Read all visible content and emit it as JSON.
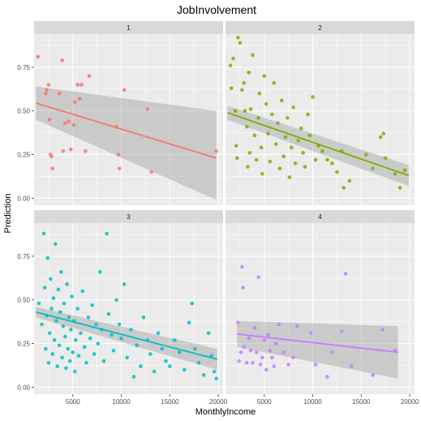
{
  "chart_data": {
    "type": "scatter",
    "title": "JobInvolvement",
    "xlabel": "MonthlyIncome",
    "ylabel": "Prediction",
    "xlim": [
      1000,
      20500
    ],
    "ylim": [
      -0.04,
      0.94
    ],
    "x_ticks": [
      5000,
      10000,
      15000,
      20000
    ],
    "x_tick_labels": [
      "5000",
      "10000",
      "15000",
      "20000"
    ],
    "y_ticks": [
      0,
      0.25,
      0.5,
      0.75
    ],
    "y_tick_labels": [
      "0.00",
      "0.25",
      "0.50",
      "0.75"
    ],
    "grid": true,
    "facet_by": "JobInvolvement",
    "panels": [
      {
        "label": "1",
        "color": "#F8766D",
        "trend": {
          "x": [
            1200,
            19800
          ],
          "y": [
            0.545,
            0.23
          ],
          "upper": [
            0.64,
            0.5
          ],
          "lower": [
            0.45,
            -0.01
          ]
        },
        "points": [
          [
            1400,
            0.81
          ],
          [
            2200,
            0.6
          ],
          [
            2300,
            0.62
          ],
          [
            2500,
            0.65
          ],
          [
            2600,
            0.45
          ],
          [
            2700,
            0.25
          ],
          [
            2800,
            0.24
          ],
          [
            2900,
            0.17
          ],
          [
            3600,
            0.6
          ],
          [
            3900,
            0.79
          ],
          [
            4000,
            0.27
          ],
          [
            4200,
            0.43
          ],
          [
            4600,
            0.44
          ],
          [
            4800,
            0.28
          ],
          [
            5100,
            0.42
          ],
          [
            5200,
            0.55
          ],
          [
            5500,
            0.65
          ],
          [
            5700,
            0.57
          ],
          [
            5900,
            0.65
          ],
          [
            6300,
            0.27
          ],
          [
            6700,
            0.7
          ],
          [
            9500,
            0.41
          ],
          [
            9700,
            0.25
          ],
          [
            9800,
            0.17
          ],
          [
            10300,
            0.62
          ],
          [
            12700,
            0.51
          ],
          [
            13100,
            0.15
          ],
          [
            19800,
            0.27
          ]
        ]
      },
      {
        "label": "2",
        "color": "#7CAE00",
        "trend": {
          "x": [
            1200,
            19900
          ],
          "y": [
            0.49,
            0.13
          ],
          "upper": [
            0.53,
            0.19
          ],
          "lower": [
            0.45,
            0.07
          ]
        },
        "points": [
          [
            1500,
            0.76
          ],
          [
            1600,
            0.63
          ],
          [
            1800,
            0.8
          ],
          [
            2000,
            0.5
          ],
          [
            2100,
            0.3
          ],
          [
            2200,
            0.23
          ],
          [
            2300,
            0.92
          ],
          [
            2500,
            0.89
          ],
          [
            2700,
            0.62
          ],
          [
            2900,
            0.66
          ],
          [
            3000,
            0.5
          ],
          [
            3200,
            0.41
          ],
          [
            3300,
            0.18
          ],
          [
            3400,
            0.72
          ],
          [
            3500,
            0.26
          ],
          [
            3600,
            0.51
          ],
          [
            3800,
            0.82
          ],
          [
            4000,
            0.36
          ],
          [
            4200,
            0.22
          ],
          [
            4400,
            0.46
          ],
          [
            4500,
            0.6
          ],
          [
            4700,
            0.29
          ],
          [
            4800,
            0.14
          ],
          [
            5000,
            0.7
          ],
          [
            5200,
            0.54
          ],
          [
            5400,
            0.37
          ],
          [
            5600,
            0.21
          ],
          [
            5800,
            0.48
          ],
          [
            6000,
            0.66
          ],
          [
            6200,
            0.31
          ],
          [
            6400,
            0.43
          ],
          [
            6600,
            0.17
          ],
          [
            6800,
            0.56
          ],
          [
            7000,
            0.24
          ],
          [
            7200,
            0.35
          ],
          [
            7400,
            0.46
          ],
          [
            7600,
            0.12
          ],
          [
            7800,
            0.29
          ],
          [
            8000,
            0.52
          ],
          [
            8200,
            0.2
          ],
          [
            8500,
            0.33
          ],
          [
            8800,
            0.4
          ],
          [
            9000,
            0.26
          ],
          [
            9200,
            0.18
          ],
          [
            9500,
            0.48
          ],
          [
            9700,
            0.36
          ],
          [
            10000,
            0.58
          ],
          [
            10300,
            0.22
          ],
          [
            10600,
            0.3
          ],
          [
            11000,
            0.27
          ],
          [
            11500,
            0.22
          ],
          [
            12000,
            0.2
          ],
          [
            12500,
            0.15
          ],
          [
            13000,
            0.27
          ],
          [
            13200,
            0.06
          ],
          [
            13800,
            0.1
          ],
          [
            15500,
            0.25
          ],
          [
            16200,
            0.17
          ],
          [
            17000,
            0.35
          ],
          [
            17300,
            0.37
          ],
          [
            17500,
            0.23
          ],
          [
            18500,
            0.14
          ],
          [
            19000,
            0.06
          ],
          [
            19500,
            0.16
          ]
        ]
      },
      {
        "label": "3",
        "color": "#00BFC4",
        "trend": {
          "x": [
            1200,
            19900
          ],
          "y": [
            0.43,
            0.16
          ],
          "upper": [
            0.46,
            0.22
          ],
          "lower": [
            0.4,
            0.1
          ]
        },
        "points": [
          [
            1500,
            0.48
          ],
          [
            1800,
            0.36
          ],
          [
            2000,
            0.88
          ],
          [
            2100,
            0.57
          ],
          [
            2200,
            0.22
          ],
          [
            2300,
            0.41
          ],
          [
            2400,
            0.74
          ],
          [
            2500,
            0.14
          ],
          [
            2600,
            0.31
          ],
          [
            2700,
            0.62
          ],
          [
            2800,
            0.45
          ],
          [
            2900,
            0.19
          ],
          [
            3000,
            0.51
          ],
          [
            3100,
            0.27
          ],
          [
            3200,
            0.82
          ],
          [
            3300,
            0.38
          ],
          [
            3400,
            0.12
          ],
          [
            3500,
            0.56
          ],
          [
            3600,
            0.24
          ],
          [
            3700,
            0.43
          ],
          [
            3800,
            0.66
          ],
          [
            3900,
            0.17
          ],
          [
            4000,
            0.35
          ],
          [
            4100,
            0.48
          ],
          [
            4200,
            0.29
          ],
          [
            4300,
            0.11
          ],
          [
            4400,
            0.59
          ],
          [
            4500,
            0.22
          ],
          [
            4600,
            0.4
          ],
          [
            4700,
            0.15
          ],
          [
            4800,
            0.33
          ],
          [
            4900,
            0.52
          ],
          [
            5000,
            0.2
          ],
          [
            5100,
            0.38
          ],
          [
            5200,
            0.09
          ],
          [
            5300,
            0.27
          ],
          [
            5500,
            0.45
          ],
          [
            5600,
            0.18
          ],
          [
            5800,
            0.31
          ],
          [
            6000,
            0.55
          ],
          [
            6200,
            0.23
          ],
          [
            6400,
            0.14
          ],
          [
            6600,
            0.4
          ],
          [
            6800,
            0.28
          ],
          [
            7000,
            0.47
          ],
          [
            7200,
            0.19
          ],
          [
            7400,
            0.36
          ],
          [
            7600,
            0.25
          ],
          [
            7800,
            0.66
          ],
          [
            8000,
            0.33
          ],
          [
            8200,
            0.15
          ],
          [
            8500,
            0.88
          ],
          [
            8700,
            0.42
          ],
          [
            9000,
            0.3
          ],
          [
            9200,
            0.21
          ],
          [
            9500,
            0.5
          ],
          [
            9800,
            0.36
          ],
          [
            10000,
            0.28
          ],
          [
            10300,
            0.59
          ],
          [
            10600,
            0.17
          ],
          [
            11000,
            0.33
          ],
          [
            11300,
            0.06
          ],
          [
            11600,
            0.24
          ],
          [
            12000,
            0.12
          ],
          [
            12300,
            0.4
          ],
          [
            12700,
            0.27
          ],
          [
            13000,
            0.19
          ],
          [
            13400,
            0.09
          ],
          [
            13800,
            0.31
          ],
          [
            14200,
            0.22
          ],
          [
            14600,
            0.15
          ],
          [
            15000,
            0.12
          ],
          [
            15500,
            0.27
          ],
          [
            16000,
            0.2
          ],
          [
            16500,
            0.1
          ],
          [
            17000,
            0.37
          ],
          [
            17300,
            0.48
          ],
          [
            17600,
            0.22
          ],
          [
            18000,
            0.14
          ],
          [
            18500,
            0.07
          ],
          [
            19000,
            0.31
          ],
          [
            19300,
            0.18
          ],
          [
            19600,
            0.09
          ],
          [
            19800,
            0.05
          ]
        ]
      },
      {
        "label": "4",
        "color": "#C77CFF",
        "trend": {
          "x": [
            2200,
            18800
          ],
          "y": [
            0.305,
            0.2
          ],
          "upper": [
            0.38,
            0.35
          ],
          "lower": [
            0.23,
            0.05
          ]
        },
        "points": [
          [
            2300,
            0.37
          ],
          [
            2400,
            0.15
          ],
          [
            2600,
            0.2
          ],
          [
            2700,
            0.69
          ],
          [
            2800,
            0.57
          ],
          [
            2900,
            0.23
          ],
          [
            3200,
            0.14
          ],
          [
            3400,
            0.28
          ],
          [
            3600,
            0.21
          ],
          [
            3800,
            0.14
          ],
          [
            4000,
            0.34
          ],
          [
            4200,
            0.2
          ],
          [
            4400,
            0.63
          ],
          [
            4600,
            0.13
          ],
          [
            4800,
            0.17
          ],
          [
            5000,
            0.27
          ],
          [
            5200,
            0.1
          ],
          [
            5400,
            0.3
          ],
          [
            5600,
            0.21
          ],
          [
            5800,
            0.17
          ],
          [
            6000,
            0.12
          ],
          [
            6200,
            0.25
          ],
          [
            6500,
            0.36
          ],
          [
            7000,
            0.2
          ],
          [
            7500,
            0.13
          ],
          [
            8000,
            0.17
          ],
          [
            8400,
            0.35
          ],
          [
            9800,
            0.31
          ],
          [
            10300,
            0.13
          ],
          [
            11500,
            0.06
          ],
          [
            12000,
            0.2
          ],
          [
            13000,
            0.32
          ],
          [
            13400,
            0.65
          ],
          [
            14000,
            0.12
          ],
          [
            16200,
            0.07
          ],
          [
            17200,
            0.33
          ],
          [
            18500,
            0.21
          ]
        ]
      }
    ]
  }
}
